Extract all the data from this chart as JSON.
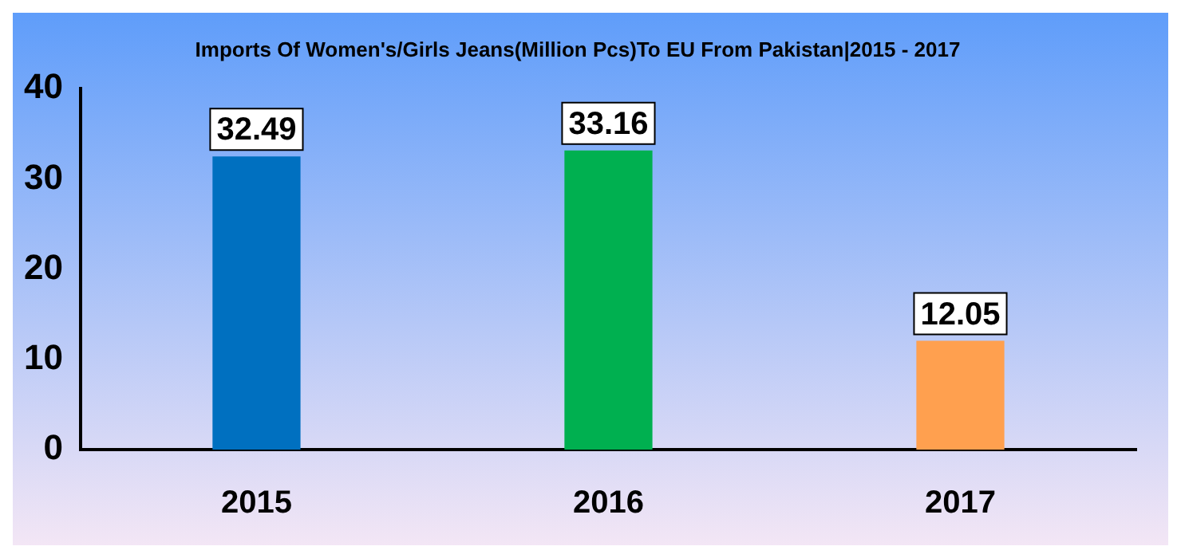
{
  "chart_data": {
    "type": "bar",
    "title": "Imports Of Women's/Girls Jeans(Million Pcs)To EU From Pakistan|2015 - 2017",
    "categories": [
      "2015",
      "2016",
      "2017"
    ],
    "values": [
      32.49,
      33.16,
      12.05
    ],
    "colors": [
      "#0070c0",
      "#00b050",
      "#ffa04f"
    ],
    "ylim": [
      0,
      40
    ],
    "yticks": [
      0,
      10,
      20,
      30,
      40
    ],
    "grid": false,
    "legend": false,
    "data_labels": true
  }
}
